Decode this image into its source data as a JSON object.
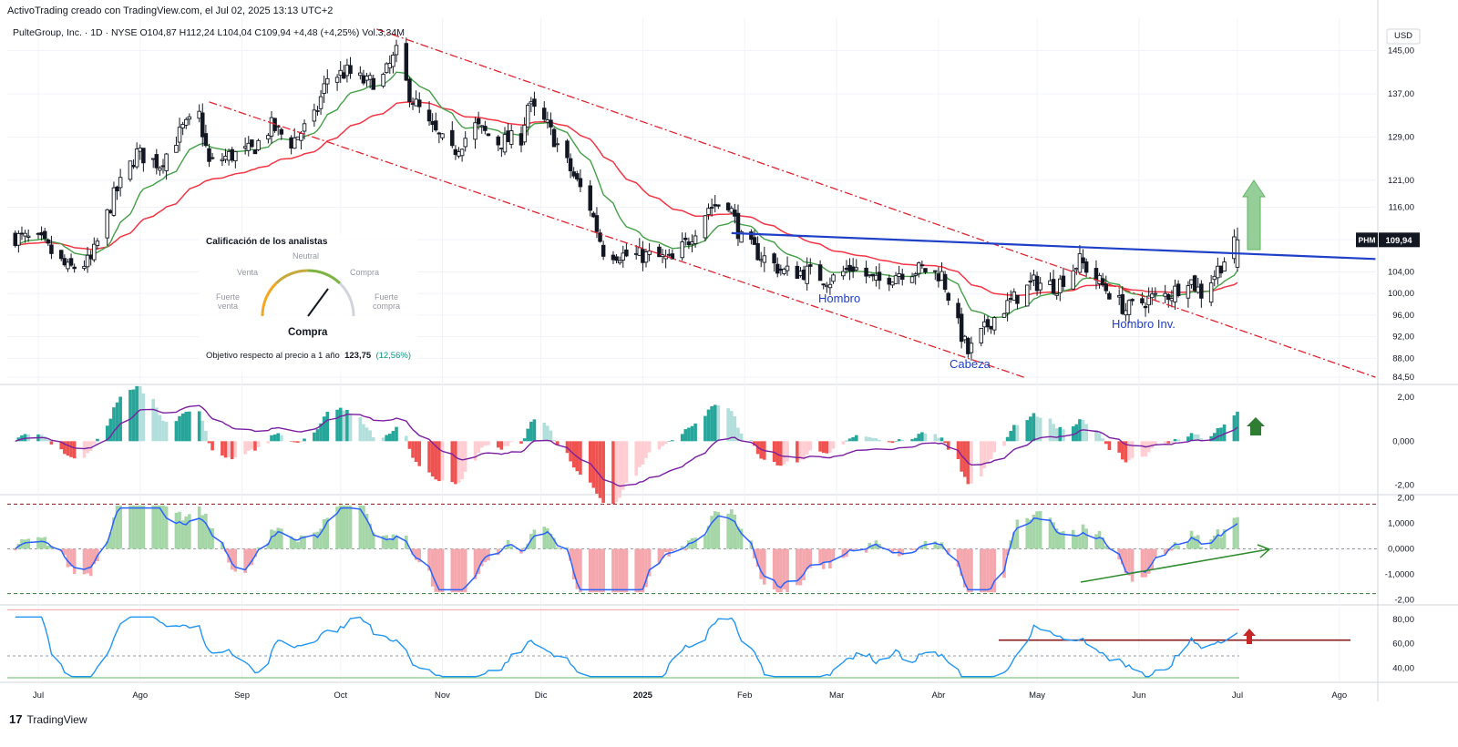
{
  "header": {
    "credit": "ActivoTrading creado con TradingView.com, el Jul 02, 2025 13:13 UTC+2"
  },
  "symbol_line": "PulteGroup, Inc. · 1D · NYSE  O104,87  H112,24  L104,04  C109,94  +4,48 (+4,25%)  Vol.3,34M",
  "currency": "USD",
  "ticker_tag": "PHM",
  "last_price_label": "109,94",
  "colors": {
    "up": "#089981",
    "down": "#f23645",
    "ma_fast": "#43a047",
    "ma_slow": "#f23645",
    "neckline": "#1e3fc8",
    "channel": "#e0242f",
    "hist_up": "#26a69a",
    "hist_down": "#ef5350",
    "macd_line": "#7b1fa2",
    "osc_line": "#2962ff",
    "osc_up": "#a5d6a7",
    "osc_down": "#f4a7ad",
    "rsi_line": "#2196f3",
    "arrow_green": "#4caf50",
    "arrow_red": "#c62828"
  },
  "analyst": {
    "title": "Calificación de los analistas",
    "venta": "Venta",
    "neutral": "Neutral",
    "compra": "Compra",
    "fuerte_venta": "Fuerte venta",
    "fuerte_compra": "Fuerte compra",
    "result": "Compra",
    "target_text": "Objetivo respecto al precio a 1 año",
    "target_value": "123,75",
    "target_pct": "(12,56%)"
  },
  "annotations": {
    "shoulder_left": "Hombro",
    "head": "Cabeza",
    "shoulder_right": "Hombro Inv."
  },
  "brand": {
    "logo": "17",
    "name": "TradingView"
  },
  "chart_data": {
    "type": "candlestick",
    "price_axis": {
      "ticks": [
        "145,00",
        "137,00",
        "129,00",
        "121,00",
        "116,00",
        "110,00",
        "104,00",
        "100,00",
        "96,00",
        "92,00",
        "88,00",
        "84,50"
      ],
      "values": [
        145,
        137,
        129,
        121,
        116,
        110,
        104,
        100,
        96,
        92,
        88,
        84.5
      ],
      "range": [
        83.5,
        151
      ]
    },
    "time_axis": {
      "ticks": [
        "Jul",
        "Ago",
        "Sep",
        "Oct",
        "Nov",
        "Dic",
        "2025",
        "Feb",
        "Mar",
        "Abr",
        "May",
        "Jun",
        "Jul",
        "Ago"
      ],
      "dates": [
        "2024-07-01",
        "2024-08-01",
        "2024-09-01",
        "2024-10-01",
        "2024-11-01",
        "2024-12-01",
        "2025-01-01",
        "2025-02-01",
        "2025-03-01",
        "2025-04-01",
        "2025-05-01",
        "2025-06-01",
        "2025-07-01",
        "2025-08-01"
      ]
    },
    "close_path": [
      [
        "2024-06-24",
        110.5
      ],
      [
        "2024-07-02",
        109.5
      ],
      [
        "2024-07-10",
        104.5
      ],
      [
        "2024-07-17",
        106
      ],
      [
        "2024-07-24",
        118
      ],
      [
        "2024-07-31",
        126
      ],
      [
        "2024-08-07",
        124
      ],
      [
        "2024-08-14",
        130.5
      ],
      [
        "2024-08-19",
        133
      ],
      [
        "2024-08-22",
        124
      ],
      [
        "2024-08-28",
        125.5
      ],
      [
        "2024-09-04",
        126.5
      ],
      [
        "2024-09-10",
        131
      ],
      [
        "2024-09-16",
        128
      ],
      [
        "2024-09-23",
        132.5
      ],
      [
        "2024-09-27",
        140
      ],
      [
        "2024-10-03",
        141
      ],
      [
        "2024-10-09",
        139
      ],
      [
        "2024-10-14",
        140
      ],
      [
        "2024-10-18",
        144.5
      ],
      [
        "2024-10-22",
        137
      ],
      [
        "2024-10-28",
        131
      ],
      [
        "2024-11-04",
        126
      ],
      [
        "2024-11-11",
        131
      ],
      [
        "2024-11-18",
        128
      ],
      [
        "2024-11-25",
        129
      ],
      [
        "2024-11-27",
        135
      ],
      [
        "2024-12-03",
        131
      ],
      [
        "2024-12-09",
        124
      ],
      [
        "2024-12-16",
        116
      ],
      [
        "2024-12-20",
        108
      ],
      [
        "2024-12-27",
        107
      ],
      [
        "2025-01-03",
        107
      ],
      [
        "2025-01-10",
        106
      ],
      [
        "2025-01-15",
        110
      ],
      [
        "2025-01-21",
        116
      ],
      [
        "2025-01-27",
        117
      ],
      [
        "2025-01-31",
        110
      ],
      [
        "2025-02-06",
        107
      ],
      [
        "2025-02-13",
        104
      ],
      [
        "2025-02-20",
        104
      ],
      [
        "2025-02-27",
        102.5
      ],
      [
        "2025-03-06",
        105
      ],
      [
        "2025-03-13",
        102
      ],
      [
        "2025-03-20",
        104
      ],
      [
        "2025-03-27",
        104.5
      ],
      [
        "2025-04-02",
        103.5
      ],
      [
        "2025-04-07",
        94
      ],
      [
        "2025-04-10",
        89
      ],
      [
        "2025-04-17",
        95
      ],
      [
        "2025-04-24",
        99
      ],
      [
        "2025-04-30",
        102
      ],
      [
        "2025-05-07",
        101.5
      ],
      [
        "2025-05-14",
        106
      ],
      [
        "2025-05-21",
        101.5
      ],
      [
        "2025-05-28",
        97
      ],
      [
        "2025-06-04",
        99
      ],
      [
        "2025-06-11",
        100
      ],
      [
        "2025-06-16",
        103
      ],
      [
        "2025-06-20",
        100
      ],
      [
        "2025-06-25",
        104.5
      ],
      [
        "2025-07-01",
        109.94
      ]
    ],
    "ma_fast_name": "",
    "ma_slow_name": "",
    "neckline": {
      "from": [
        "2025-01-28",
        111.2
      ],
      "to": [
        "2025-08-12",
        106.4
      ]
    },
    "channel_upper": {
      "from": [
        "2024-10-12",
        149
      ],
      "to": [
        "2025-08-12",
        84.5
      ]
    },
    "channel_lower": {
      "from": [
        "2024-08-22",
        135.5
      ],
      "to": [
        "2025-04-27",
        84.5
      ]
    },
    "macd": {
      "ticks": [
        "2,00",
        "0,000",
        "-2,00"
      ],
      "values": [
        2,
        0,
        -2
      ],
      "range": [
        -2.3,
        2.45
      ]
    },
    "oscillator": {
      "ticks": [
        "2,00",
        "1,0000",
        "0,0000",
        "-1,0000",
        "-2,00"
      ],
      "values": [
        2,
        1,
        0,
        -1,
        -2
      ],
      "range": [
        -2.0,
        2.0
      ],
      "upper_band": 1.75,
      "lower_band": -1.75
    },
    "rsi": {
      "ticks": [
        "80,00",
        "60,00",
        "40,00"
      ],
      "values": [
        80,
        60,
        40
      ],
      "range": [
        29,
        89
      ],
      "upper": 88,
      "mid": 50,
      "lower": 32,
      "resistance": 63
    }
  }
}
